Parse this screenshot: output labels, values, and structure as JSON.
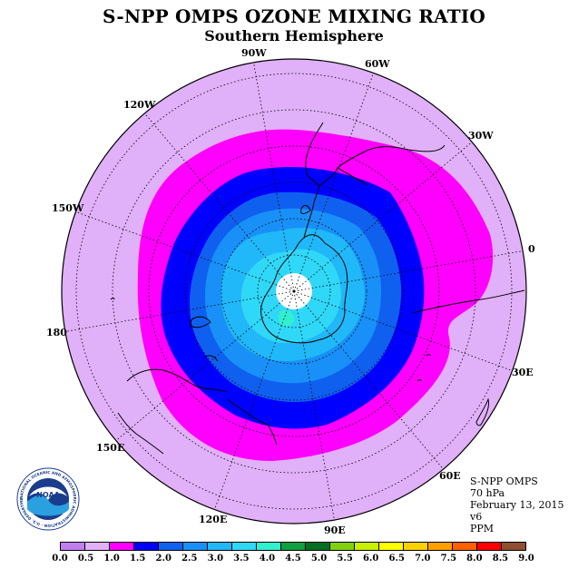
{
  "header": {
    "title": "S-NPP OMPS OZONE MIXING RATIO",
    "subtitle": "Southern Hemisphere"
  },
  "map": {
    "projection": "south-polar-stereographic",
    "longitude_labels": [
      "90W",
      "60W",
      "30W",
      "0",
      "30E",
      "60E",
      "90E",
      "120E",
      "150E",
      "180",
      "150W",
      "120W"
    ]
  },
  "info": {
    "instrument": "S-NPP OMPS",
    "level": "70 hPa",
    "date": "February 13, 2015",
    "version": "v6",
    "units": "PPM"
  },
  "colorbar": {
    "colors": [
      "#c080f0",
      "#e0b0f8",
      "#ff00ff",
      "#0000ff",
      "#1060f0",
      "#1890f8",
      "#20b8f8",
      "#30d8f8",
      "#30f0d0",
      "#10a040",
      "#007020",
      "#80d010",
      "#c8f000",
      "#ffff00",
      "#ffd000",
      "#ffa000",
      "#ff6000",
      "#ff0000",
      "#905030"
    ],
    "ticks": [
      "0.0",
      "0.5",
      "1.0",
      "1.5",
      "2.0",
      "2.5",
      "3.0",
      "3.5",
      "4.0",
      "4.5",
      "5.0",
      "5.5",
      "6.0",
      "6.5",
      "7.0",
      "7.5",
      "8.0",
      "8.5",
      "9.0"
    ]
  },
  "logo": {
    "text": "NOAA",
    "ring_text": "NATIONAL OCEANIC AND ATMOSPHERIC ADMINISTRATION · U.S. DEPARTMENT OF COMMERCE"
  },
  "fill_colors": {
    "outer": "#e0b0f8",
    "ring_1": "#ff00ff",
    "ring_2": "#0000ff",
    "ring_3": "#1060f0",
    "ring_4": "#1890f8",
    "ring_5": "#20b8f8",
    "ring_6": "#30d8f8",
    "pole": "#ffffff"
  }
}
